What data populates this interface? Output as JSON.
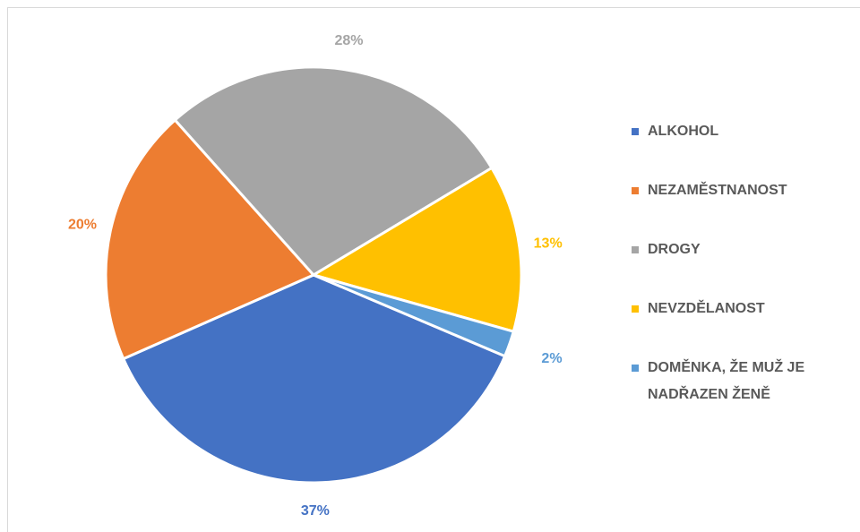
{
  "chart_data": {
    "type": "pie",
    "categories": [
      "ALKOHOL",
      "NEZAMĚSTNANOST",
      "DROGY",
      "NEVZDĚLANOST",
      "DOMĚNKA, ŽE MUŽ JE NADŘAZEN ŽENĚ"
    ],
    "values": [
      37,
      20,
      28,
      13,
      2
    ],
    "value_labels": [
      "37%",
      "20%",
      "28%",
      "13%",
      "2%"
    ],
    "colors": [
      "#4472c4",
      "#ed7d31",
      "#a5a5a5",
      "#ffc000",
      "#5b9bd5"
    ],
    "legend": "right"
  }
}
